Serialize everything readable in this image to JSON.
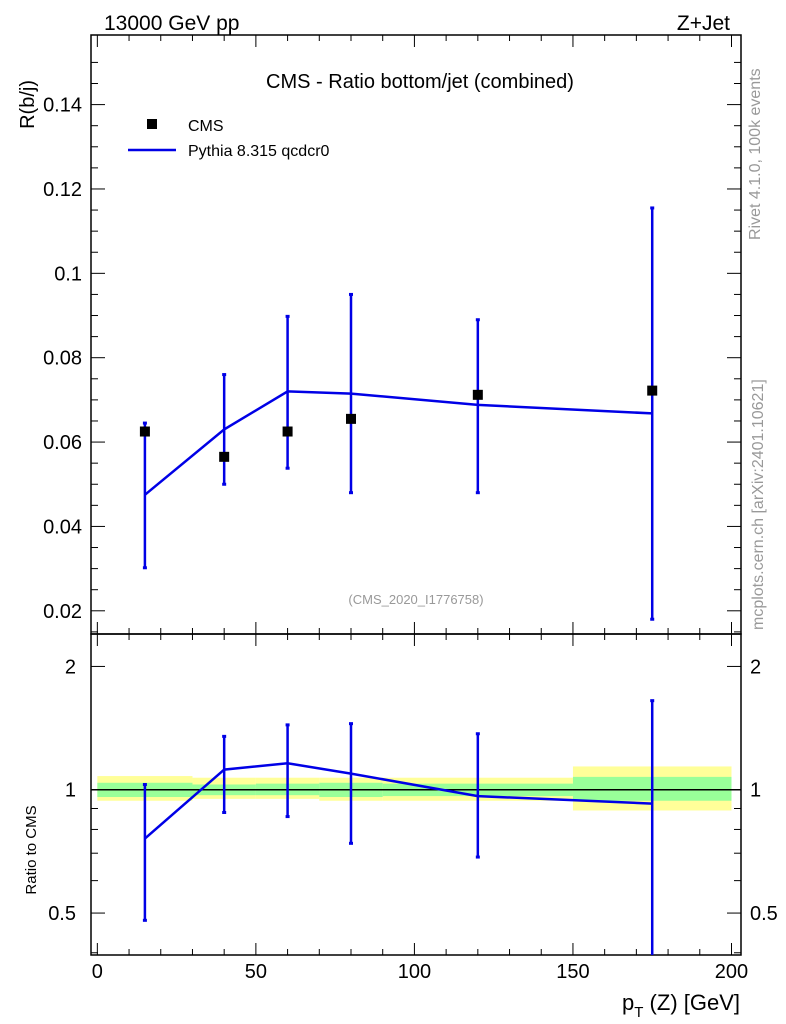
{
  "header": {
    "left": "13000 GeV pp",
    "right": "Z+Jet"
  },
  "side_labels": {
    "rivet": "Rivet 4.1.0,  100k events",
    "mcplots": "mcplots.cern.ch [arXiv:2401.10621]"
  },
  "colors": {
    "data": "#000000",
    "mc": "#0000e6",
    "band_inner": "#99ff99",
    "band_outer": "#ffff99",
    "watermark": "#999999"
  },
  "chart_data": [
    {
      "type": "scatter",
      "title": "CMS - Ratio bottom/jet (combined)",
      "watermark": "(CMS_2020_I1776758)",
      "xlabel": "",
      "ylabel": "R(b/j)",
      "xlim": [
        -2,
        203
      ],
      "ylim": [
        0.0145,
        0.1565
      ],
      "yticks": [
        0.02,
        0.04,
        0.06,
        0.08,
        0.1,
        0.12,
        0.14
      ],
      "ytick_labels": [
        "0.02",
        "0.04",
        "0.06",
        "0.08",
        "0.1",
        "0.12",
        "0.14"
      ],
      "legend": {
        "placement": "top-left",
        "entries": [
          "CMS",
          "Pythia 8.315 qcdcr0"
        ]
      },
      "series": [
        {
          "name": "CMS",
          "kind": "markers",
          "x": [
            15,
            40,
            60,
            80,
            120,
            175
          ],
          "y": [
            0.0625,
            0.0565,
            0.0625,
            0.0655,
            0.0712,
            0.0722
          ]
        },
        {
          "name": "Pythia 8.315 qcdcr0",
          "kind": "line",
          "x": [
            15,
            40,
            60,
            80,
            120,
            175
          ],
          "y": [
            0.0475,
            0.063,
            0.072,
            0.0715,
            0.0688,
            0.0668
          ],
          "err_low": [
            0.0302,
            0.05,
            0.0538,
            0.048,
            0.048,
            0.018
          ],
          "err_high": [
            0.0645,
            0.076,
            0.0898,
            0.095,
            0.089,
            0.1155
          ]
        }
      ]
    },
    {
      "type": "line",
      "title": "",
      "xlabel": "p_T (Z) [GeV]",
      "xlabel_main": "p",
      "xlabel_sub": "T",
      "xlabel_rest": " (Z) [GeV]",
      "ylabel": "Ratio to CMS",
      "xlim": [
        -2,
        203
      ],
      "ylim": [
        0.395,
        2.4
      ],
      "yscale": "log",
      "xticks": [
        0,
        50,
        100,
        150,
        200
      ],
      "xtick_labels": [
        "0",
        "50",
        "100",
        "150",
        "200"
      ],
      "yticks": [
        0.5,
        1,
        2
      ],
      "ytick_labels": [
        "0.5",
        "1",
        "2"
      ],
      "bands": [
        {
          "x0": 0,
          "x1": 30,
          "outer": [
            0.94,
            1.08
          ],
          "inner": [
            0.96,
            1.04
          ]
        },
        {
          "x0": 30,
          "x1": 50,
          "outer": [
            0.95,
            1.07
          ],
          "inner": [
            0.97,
            1.03
          ]
        },
        {
          "x0": 50,
          "x1": 70,
          "outer": [
            0.95,
            1.07
          ],
          "inner": [
            0.97,
            1.035
          ]
        },
        {
          "x0": 70,
          "x1": 90,
          "outer": [
            0.94,
            1.07
          ],
          "inner": [
            0.96,
            1.04
          ]
        },
        {
          "x0": 90,
          "x1": 150,
          "outer": [
            0.94,
            1.07
          ],
          "inner": [
            0.965,
            1.035
          ]
        },
        {
          "x0": 150,
          "x1": 200,
          "outer": [
            0.89,
            1.14
          ],
          "inner": [
            0.94,
            1.075
          ]
        }
      ],
      "series": [
        {
          "name": "Pythia 8.315 qcdcr0",
          "x": [
            15,
            40,
            60,
            80,
            120,
            175
          ],
          "y": [
            0.76,
            1.12,
            1.16,
            1.095,
            0.965,
            0.925
          ],
          "err_low": [
            0.48,
            0.88,
            0.86,
            0.74,
            0.685,
            0.37
          ],
          "err_high": [
            1.03,
            1.35,
            1.44,
            1.45,
            1.37,
            1.65
          ]
        }
      ]
    }
  ]
}
